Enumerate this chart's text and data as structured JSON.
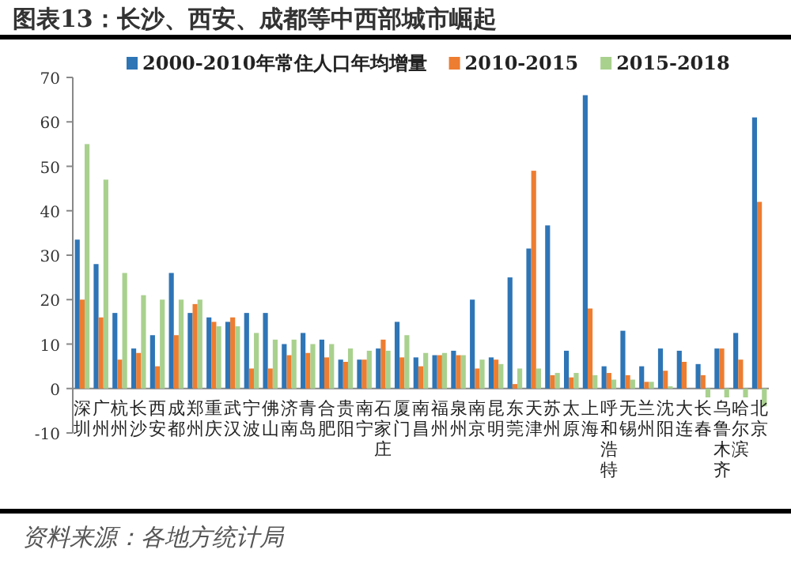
{
  "chart_data": {
    "type": "bar",
    "title": "图表13：长沙、西安、成都等中西部城市崛起",
    "categories": [
      "深圳",
      "广州",
      "杭州",
      "长沙",
      "西安",
      "成都",
      "郑州",
      "重庆",
      "武汉",
      "宁波",
      "佛山",
      "济南",
      "青岛",
      "合肥",
      "贵阳",
      "南宁",
      "石家庄",
      "厦门",
      "南昌",
      "福州",
      "泉州",
      "南京",
      "昆明",
      "东莞",
      "天津",
      "苏州",
      "太原",
      "上海",
      "呼和浩特",
      "无锡",
      "兰州",
      "沈阳",
      "大连",
      "长春",
      "乌鲁木齐",
      "哈尔滨",
      "北京"
    ],
    "series": [
      {
        "name": "2000-2010年常住人口年均增量",
        "color": "#2e75b6",
        "values": [
          33.5,
          28,
          17,
          9,
          12,
          26,
          17,
          16,
          15,
          17,
          17,
          10,
          12.5,
          11,
          6.5,
          6.5,
          9,
          15,
          7,
          7.5,
          8.5,
          20,
          7,
          25,
          31.5,
          36.7,
          8.5,
          66,
          5,
          13,
          5,
          9,
          8.5,
          5.5,
          9,
          12.5,
          61
        ]
      },
      {
        "name": "2010-2015",
        "color": "#ed7d31",
        "values": [
          20,
          16,
          6.5,
          8,
          5,
          12,
          19,
          15,
          16,
          4.5,
          4.5,
          7.5,
          8,
          7,
          6,
          6.5,
          11,
          7,
          5,
          7.5,
          7.5,
          4.5,
          6.5,
          1,
          49,
          3,
          2.5,
          18,
          3.5,
          3,
          1.5,
          4,
          6,
          3,
          9,
          6.5,
          42
        ]
      },
      {
        "name": "2015-2018",
        "color": "#a9d18e",
        "values": [
          55,
          47,
          26,
          21,
          20,
          20,
          20,
          14,
          14,
          12.5,
          11,
          11,
          10,
          10,
          9,
          8.5,
          8.5,
          12,
          8,
          8,
          7.5,
          6.5,
          5.5,
          4.5,
          4.5,
          3.5,
          3.5,
          3,
          2,
          2,
          1.5,
          0.5,
          0,
          -2,
          -2,
          -2,
          -4
        ]
      }
    ],
    "ylim": [
      -10,
      70
    ],
    "yticks": [
      -10,
      0,
      10,
      20,
      30,
      40,
      50,
      60,
      70
    ],
    "grid": false,
    "legend": "top",
    "annotations": [
      "资料来源：各地方统计局"
    ]
  }
}
